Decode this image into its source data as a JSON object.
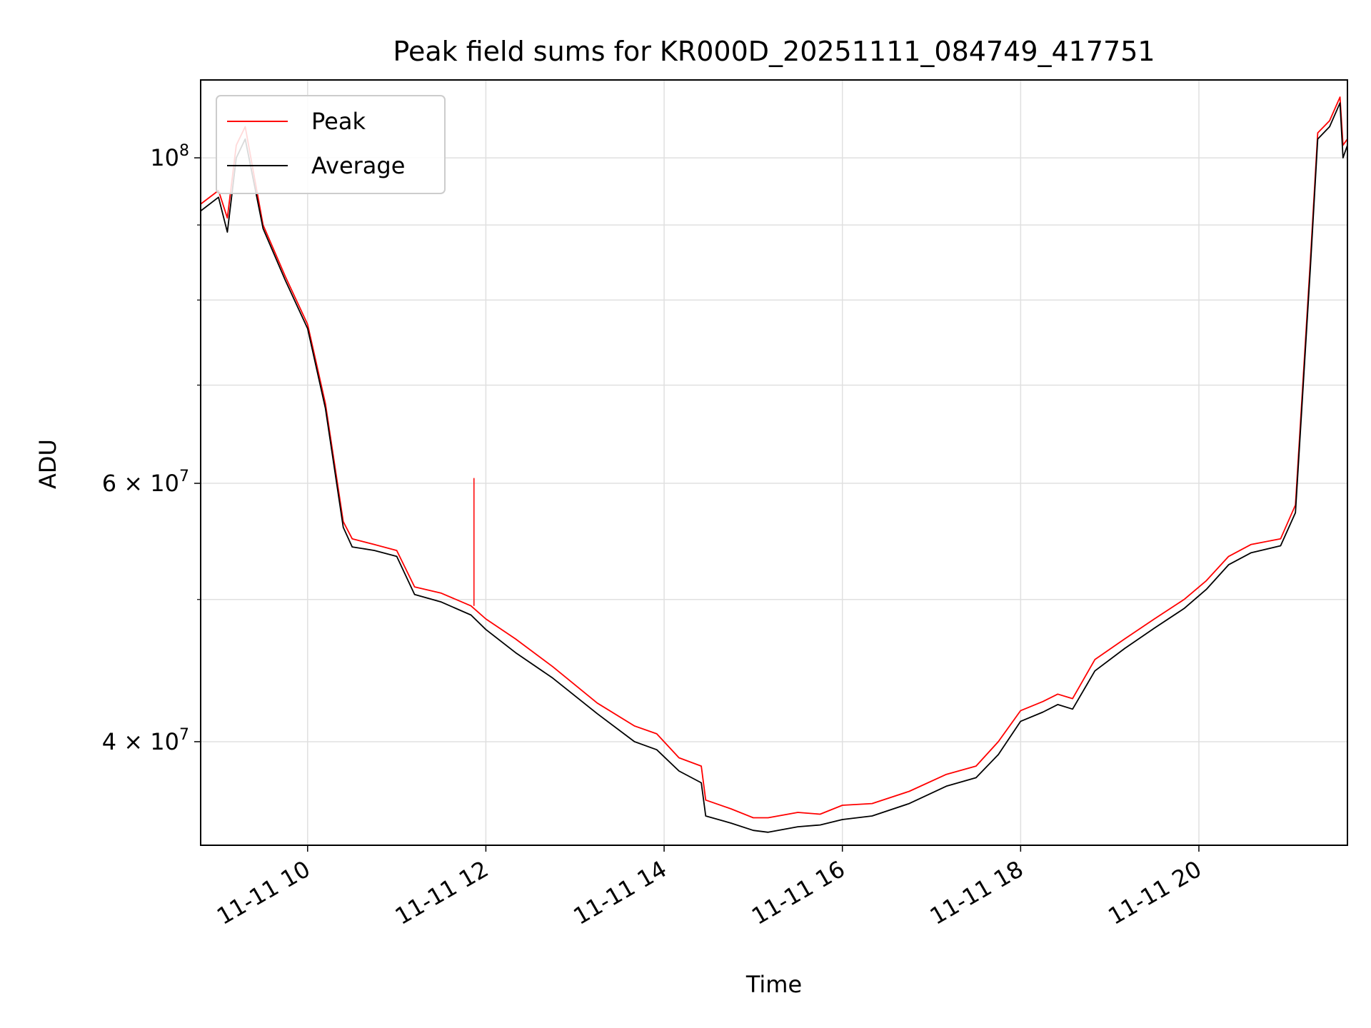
{
  "chart_data": {
    "type": "line",
    "title": "Peak field sums for KR000D_20251111_084749_417751",
    "xlabel": "Time",
    "ylabel": "ADU",
    "yscale": "log",
    "grid": true,
    "legend": {
      "location": "upper-left",
      "entries": [
        "Peak",
        "Average"
      ]
    },
    "colors": {
      "Peak": "#ff0000",
      "Average": "#000000",
      "grid": "#e0e0e0",
      "frame": "#000000"
    },
    "x_axis": {
      "ticks": [
        "2025-11-11T10:00",
        "2025-11-11T12:00",
        "2025-11-11T14:00",
        "2025-11-11T16:00",
        "2025-11-11T18:00",
        "2025-11-11T20:00"
      ],
      "tick_labels": [
        "11-11 10",
        "11-11 12",
        "11-11 14",
        "11-11 16",
        "11-11 18",
        "11-11 20"
      ],
      "range": [
        "2025-11-11T08:48",
        "2025-11-11T21:40"
      ]
    },
    "y_axis": {
      "range": [
        34000000,
        113000000
      ],
      "major_ticks": [
        40000000,
        60000000,
        100000000
      ],
      "major_tick_labels": [
        "4 × 10^7",
        "6 × 10^7",
        "10^8"
      ],
      "minor_ticks": [
        50000000,
        70000000,
        80000000,
        90000000
      ]
    },
    "series": [
      {
        "name": "Peak",
        "x": [
          "2025-11-11T08:48",
          "2025-11-11T09:00",
          "2025-11-11T09:06",
          "2025-11-11T09:12",
          "2025-11-11T09:18",
          "2025-11-11T09:30",
          "2025-11-11T09:45",
          "2025-11-11T10:00",
          "2025-11-11T10:12",
          "2025-11-11T10:24",
          "2025-11-11T10:30",
          "2025-11-11T10:45",
          "2025-11-11T11:00",
          "2025-11-11T11:12",
          "2025-11-11T11:30",
          "2025-11-11T11:50",
          "2025-11-11T12:00",
          "2025-11-11T12:20",
          "2025-11-11T12:45",
          "2025-11-11T13:15",
          "2025-11-11T13:40",
          "2025-11-11T13:55",
          "2025-11-11T14:10",
          "2025-11-11T14:25",
          "2025-11-11T14:28",
          "2025-11-11T14:45",
          "2025-11-11T15:00",
          "2025-11-11T15:10",
          "2025-11-11T15:30",
          "2025-11-11T15:45",
          "2025-11-11T16:00",
          "2025-11-11T16:20",
          "2025-11-11T16:45",
          "2025-11-11T17:10",
          "2025-11-11T17:30",
          "2025-11-11T17:45",
          "2025-11-11T18:00",
          "2025-11-11T18:15",
          "2025-11-11T18:25",
          "2025-11-11T18:35",
          "2025-11-11T18:50",
          "2025-11-11T19:10",
          "2025-11-11T19:30",
          "2025-11-11T19:50",
          "2025-11-11T20:05",
          "2025-11-11T20:20",
          "2025-11-11T20:35",
          "2025-11-11T20:55",
          "2025-11-11T21:05",
          "2025-11-11T21:15",
          "2025-11-11T21:20",
          "2025-11-11T21:28",
          "2025-11-11T21:35",
          "2025-11-11T21:37",
          "2025-11-11T21:40"
        ],
        "values": [
          93000000,
          95000000,
          91000000,
          102000000,
          105000000,
          90000000,
          83000000,
          77000000,
          68000000,
          56500000,
          55000000,
          54500000,
          54000000,
          51000000,
          50500000,
          49500000,
          48500000,
          47000000,
          45000000,
          42500000,
          41000000,
          40500000,
          39000000,
          38500000,
          36500000,
          36000000,
          35500000,
          35500000,
          35800000,
          35700000,
          36200000,
          36300000,
          37000000,
          38000000,
          38500000,
          40000000,
          42000000,
          42600000,
          43100000,
          42800000,
          45500000,
          47000000,
          48500000,
          50000000,
          51500000,
          53500000,
          54500000,
          55000000,
          58000000,
          85000000,
          104000000,
          106000000,
          110000000,
          102000000,
          103000000
        ]
      },
      {
        "name": "Average",
        "x": [
          "2025-11-11T08:48",
          "2025-11-11T09:00",
          "2025-11-11T09:06",
          "2025-11-11T09:12",
          "2025-11-11T09:18",
          "2025-11-11T09:30",
          "2025-11-11T09:45",
          "2025-11-11T10:00",
          "2025-11-11T10:12",
          "2025-11-11T10:24",
          "2025-11-11T10:30",
          "2025-11-11T10:45",
          "2025-11-11T11:00",
          "2025-11-11T11:12",
          "2025-11-11T11:30",
          "2025-11-11T11:50",
          "2025-11-11T12:00",
          "2025-11-11T12:20",
          "2025-11-11T12:45",
          "2025-11-11T13:15",
          "2025-11-11T13:40",
          "2025-11-11T13:55",
          "2025-11-11T14:10",
          "2025-11-11T14:25",
          "2025-11-11T14:28",
          "2025-11-11T14:45",
          "2025-11-11T15:00",
          "2025-11-11T15:10",
          "2025-11-11T15:30",
          "2025-11-11T15:45",
          "2025-11-11T16:00",
          "2025-11-11T16:20",
          "2025-11-11T16:45",
          "2025-11-11T17:10",
          "2025-11-11T17:30",
          "2025-11-11T17:45",
          "2025-11-11T18:00",
          "2025-11-11T18:15",
          "2025-11-11T18:25",
          "2025-11-11T18:35",
          "2025-11-11T18:50",
          "2025-11-11T19:10",
          "2025-11-11T19:30",
          "2025-11-11T19:50",
          "2025-11-11T20:05",
          "2025-11-11T20:20",
          "2025-11-11T20:35",
          "2025-11-11T20:55",
          "2025-11-11T21:05",
          "2025-11-11T21:15",
          "2025-11-11T21:20",
          "2025-11-11T21:28",
          "2025-11-11T21:35",
          "2025-11-11T21:37",
          "2025-11-11T21:40"
        ],
        "values": [
          92000000,
          94000000,
          89000000,
          100000000,
          103000000,
          89500000,
          82500000,
          76500000,
          67500000,
          56000000,
          54300000,
          54000000,
          53500000,
          50400000,
          49800000,
          48800000,
          47700000,
          46000000,
          44200000,
          41800000,
          40000000,
          39500000,
          38200000,
          37500000,
          35600000,
          35200000,
          34800000,
          34700000,
          35000000,
          35100000,
          35400000,
          35600000,
          36300000,
          37300000,
          37800000,
          39200000,
          41300000,
          41900000,
          42400000,
          42100000,
          44700000,
          46300000,
          47800000,
          49300000,
          50800000,
          52800000,
          53800000,
          54400000,
          57300000,
          84000000,
          103000000,
          105000000,
          109000000,
          100000000,
          102000000
        ]
      }
    ],
    "annotations": [
      {
        "series": "Peak",
        "x": "2025-11-11T11:52",
        "value": 60500000,
        "note": "spike"
      }
    ]
  }
}
